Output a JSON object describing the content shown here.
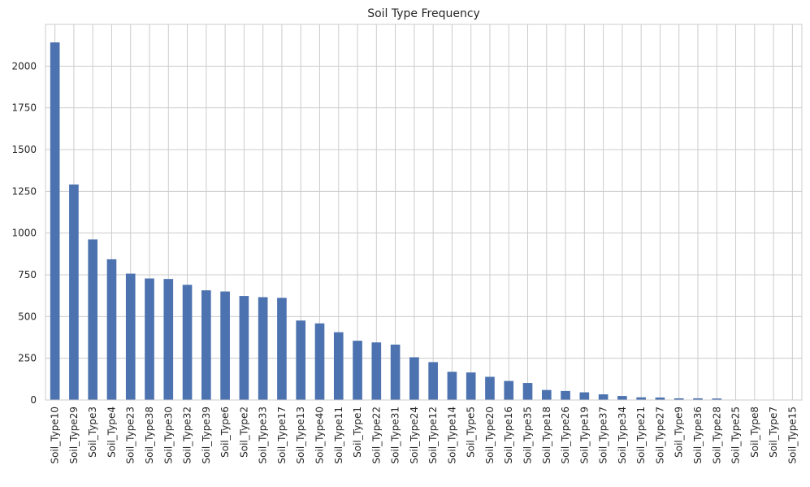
{
  "chart_data": {
    "type": "bar",
    "title": "Soil Type Frequency",
    "xlabel": "",
    "ylabel": "",
    "ylim": [
      0,
      2250
    ],
    "yticks": [
      0,
      250,
      500,
      750,
      1000,
      1250,
      1500,
      1750,
      2000
    ],
    "grid": true,
    "bar_color": "#4c72b0",
    "categories": [
      "Soil_Type10",
      "Soil_Type29",
      "Soil_Type3",
      "Soil_Type4",
      "Soil_Type23",
      "Soil_Type38",
      "Soil_Type30",
      "Soil_Type32",
      "Soil_Type39",
      "Soil_Type6",
      "Soil_Type2",
      "Soil_Type33",
      "Soil_Type17",
      "Soil_Type13",
      "Soil_Type40",
      "Soil_Type11",
      "Soil_Type1",
      "Soil_Type22",
      "Soil_Type31",
      "Soil_Type24",
      "Soil_Type12",
      "Soil_Type14",
      "Soil_Type5",
      "Soil_Type20",
      "Soil_Type16",
      "Soil_Type35",
      "Soil_Type18",
      "Soil_Type26",
      "Soil_Type19",
      "Soil_Type37",
      "Soil_Type34",
      "Soil_Type21",
      "Soil_Type27",
      "Soil_Type9",
      "Soil_Type36",
      "Soil_Type28",
      "Soil_Type25",
      "Soil_Type8",
      "Soil_Type7",
      "Soil_Type15"
    ],
    "values": [
      2142,
      1291,
      962,
      843,
      757,
      728,
      725,
      690,
      657,
      650,
      623,
      616,
      612,
      476,
      459,
      406,
      355,
      345,
      332,
      256,
      227,
      169,
      165,
      139,
      114,
      102,
      60,
      54,
      46,
      34,
      24,
      16,
      15,
      10,
      10,
      9,
      1,
      1,
      0,
      0
    ]
  }
}
